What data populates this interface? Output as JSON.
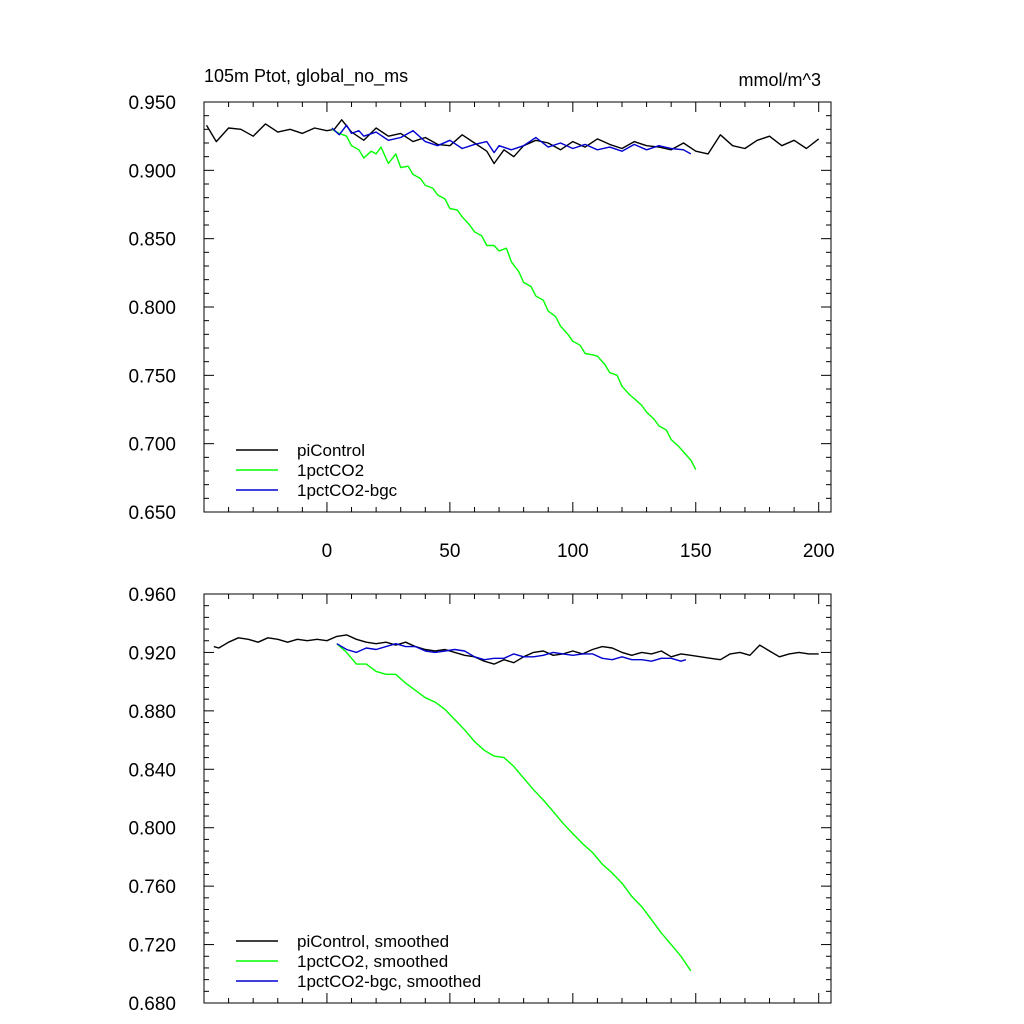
{
  "chart_data": [
    {
      "type": "line",
      "title": "105m Ptot, global_no_ms",
      "units": "mmol/m^3",
      "xlim": [
        -50,
        205
      ],
      "ylim": [
        0.65,
        0.95
      ],
      "x_ticks": [
        0,
        50,
        100,
        150,
        200
      ],
      "x_tick_labels": [
        "0",
        "50",
        "100",
        "150",
        "200"
      ],
      "y_ticks": [
        0.65,
        0.7,
        0.75,
        0.8,
        0.85,
        0.9,
        0.95
      ],
      "y_tick_labels": [
        "0.650",
        "0.700",
        "0.750",
        "0.800",
        "0.850",
        "0.900",
        "0.950"
      ],
      "legend_position": "bottom-left",
      "series": [
        {
          "name": "piControl",
          "color": "#000000",
          "x": [
            -49,
            -45,
            -40,
            -35,
            -30,
            -25,
            -20,
            -15,
            -10,
            -5,
            0,
            3,
            6,
            10,
            15,
            20,
            25,
            30,
            35,
            40,
            45,
            50,
            55,
            60,
            65,
            68,
            72,
            76,
            80,
            85,
            90,
            95,
            100,
            105,
            110,
            115,
            120,
            125,
            130,
            135,
            140,
            145,
            150,
            155,
            160,
            165,
            170,
            175,
            180,
            185,
            190,
            195,
            200
          ],
          "y": [
            0.933,
            0.921,
            0.931,
            0.93,
            0.925,
            0.934,
            0.928,
            0.93,
            0.927,
            0.931,
            0.929,
            0.93,
            0.937,
            0.928,
            0.922,
            0.931,
            0.925,
            0.927,
            0.921,
            0.924,
            0.919,
            0.918,
            0.926,
            0.92,
            0.914,
            0.905,
            0.915,
            0.91,
            0.918,
            0.922,
            0.92,
            0.915,
            0.921,
            0.917,
            0.923,
            0.919,
            0.916,
            0.921,
            0.918,
            0.917,
            0.915,
            0.92,
            0.914,
            0.912,
            0.926,
            0.918,
            0.916,
            0.922,
            0.925,
            0.918,
            0.922,
            0.916,
            0.923
          ]
        },
        {
          "name": "1pctCO2",
          "color": "#00ff00",
          "x": [
            2,
            5,
            8,
            10,
            13,
            15,
            18,
            20,
            22,
            25,
            28,
            30,
            33,
            35,
            38,
            40,
            43,
            45,
            48,
            50,
            53,
            55,
            58,
            60,
            63,
            65,
            68,
            70,
            73,
            75,
            78,
            80,
            83,
            85,
            88,
            90,
            93,
            95,
            98,
            100,
            103,
            105,
            108,
            110,
            113,
            115,
            118,
            120,
            123,
            125,
            128,
            130,
            133,
            135,
            138,
            140,
            143,
            145,
            148,
            150
          ],
          "y": [
            0.93,
            0.927,
            0.925,
            0.918,
            0.915,
            0.909,
            0.914,
            0.912,
            0.917,
            0.905,
            0.912,
            0.902,
            0.903,
            0.897,
            0.894,
            0.889,
            0.887,
            0.882,
            0.879,
            0.872,
            0.871,
            0.866,
            0.86,
            0.855,
            0.852,
            0.845,
            0.845,
            0.841,
            0.843,
            0.833,
            0.826,
            0.818,
            0.815,
            0.808,
            0.805,
            0.797,
            0.793,
            0.786,
            0.78,
            0.775,
            0.772,
            0.766,
            0.765,
            0.764,
            0.758,
            0.752,
            0.75,
            0.742,
            0.736,
            0.733,
            0.728,
            0.723,
            0.718,
            0.713,
            0.71,
            0.703,
            0.698,
            0.694,
            0.688,
            0.681
          ]
        },
        {
          "name": "1pctCO2-bgc",
          "color": "#0000d0",
          "x": [
            2,
            5,
            8,
            10,
            13,
            15,
            20,
            25,
            30,
            35,
            40,
            45,
            50,
            55,
            60,
            65,
            68,
            70,
            75,
            80,
            85,
            90,
            95,
            100,
            105,
            110,
            115,
            120,
            125,
            130,
            135,
            140,
            145,
            148
          ],
          "y": [
            0.931,
            0.926,
            0.933,
            0.927,
            0.929,
            0.925,
            0.928,
            0.922,
            0.924,
            0.929,
            0.921,
            0.918,
            0.922,
            0.916,
            0.919,
            0.921,
            0.913,
            0.918,
            0.915,
            0.918,
            0.924,
            0.917,
            0.92,
            0.916,
            0.919,
            0.915,
            0.917,
            0.914,
            0.919,
            0.915,
            0.918,
            0.916,
            0.915,
            0.912
          ]
        }
      ]
    },
    {
      "type": "line",
      "title": "",
      "xlim": [
        -50,
        205
      ],
      "ylim": [
        0.68,
        0.96
      ],
      "x_ticks": [
        0,
        50,
        100,
        150,
        200
      ],
      "y_ticks": [
        0.68,
        0.72,
        0.76,
        0.8,
        0.84,
        0.88,
        0.92,
        0.96
      ],
      "y_tick_labels": [
        "0.680",
        "0.720",
        "0.760",
        "0.800",
        "0.840",
        "0.880",
        "0.920",
        "0.960"
      ],
      "legend_position": "bottom-left",
      "series": [
        {
          "name": "piControl, smoothed",
          "color": "#000000",
          "x": [
            -46,
            -44,
            -40,
            -36,
            -32,
            -28,
            -24,
            -20,
            -16,
            -12,
            -8,
            -4,
            0,
            4,
            8,
            12,
            16,
            20,
            24,
            28,
            32,
            36,
            40,
            44,
            48,
            52,
            56,
            60,
            64,
            68,
            72,
            76,
            80,
            84,
            88,
            92,
            96,
            100,
            104,
            108,
            112,
            116,
            120,
            124,
            128,
            132,
            136,
            140,
            144,
            148,
            152,
            156,
            160,
            164,
            168,
            172,
            176,
            180,
            184,
            188,
            192,
            196,
            200
          ],
          "y": [
            0.924,
            0.923,
            0.927,
            0.93,
            0.929,
            0.927,
            0.93,
            0.929,
            0.927,
            0.929,
            0.928,
            0.929,
            0.928,
            0.931,
            0.932,
            0.929,
            0.927,
            0.926,
            0.927,
            0.925,
            0.927,
            0.924,
            0.922,
            0.921,
            0.922,
            0.92,
            0.918,
            0.917,
            0.914,
            0.912,
            0.915,
            0.913,
            0.917,
            0.92,
            0.921,
            0.918,
            0.919,
            0.921,
            0.919,
            0.922,
            0.924,
            0.923,
            0.92,
            0.918,
            0.92,
            0.919,
            0.921,
            0.917,
            0.919,
            0.918,
            0.917,
            0.916,
            0.915,
            0.919,
            0.92,
            0.918,
            0.925,
            0.921,
            0.917,
            0.919,
            0.92,
            0.919,
            0.919
          ]
        },
        {
          "name": "1pctCO2, smoothed",
          "color": "#00ff00",
          "x": [
            4,
            8,
            12,
            16,
            20,
            24,
            28,
            32,
            36,
            40,
            44,
            48,
            52,
            56,
            60,
            64,
            68,
            72,
            76,
            80,
            84,
            88,
            92,
            96,
            100,
            104,
            108,
            112,
            116,
            120,
            124,
            128,
            132,
            136,
            140,
            144,
            148
          ],
          "y": [
            0.926,
            0.92,
            0.912,
            0.912,
            0.907,
            0.905,
            0.905,
            0.899,
            0.894,
            0.889,
            0.886,
            0.881,
            0.874,
            0.867,
            0.859,
            0.853,
            0.849,
            0.848,
            0.842,
            0.834,
            0.826,
            0.819,
            0.811,
            0.803,
            0.796,
            0.789,
            0.783,
            0.775,
            0.769,
            0.762,
            0.753,
            0.746,
            0.737,
            0.728,
            0.72,
            0.712,
            0.702
          ]
        },
        {
          "name": "1pctCO2-bgc, smoothed",
          "color": "#0000d0",
          "x": [
            4,
            8,
            12,
            16,
            20,
            24,
            28,
            32,
            36,
            40,
            44,
            48,
            52,
            56,
            60,
            64,
            68,
            72,
            76,
            80,
            84,
            88,
            92,
            96,
            100,
            104,
            108,
            112,
            116,
            120,
            124,
            128,
            132,
            136,
            140,
            144,
            146
          ],
          "y": [
            0.926,
            0.922,
            0.92,
            0.923,
            0.922,
            0.924,
            0.926,
            0.924,
            0.924,
            0.921,
            0.92,
            0.921,
            0.922,
            0.921,
            0.917,
            0.915,
            0.916,
            0.916,
            0.919,
            0.917,
            0.917,
            0.918,
            0.92,
            0.919,
            0.918,
            0.919,
            0.919,
            0.916,
            0.915,
            0.917,
            0.915,
            0.915,
            0.914,
            0.916,
            0.916,
            0.914,
            0.915
          ]
        }
      ]
    }
  ]
}
